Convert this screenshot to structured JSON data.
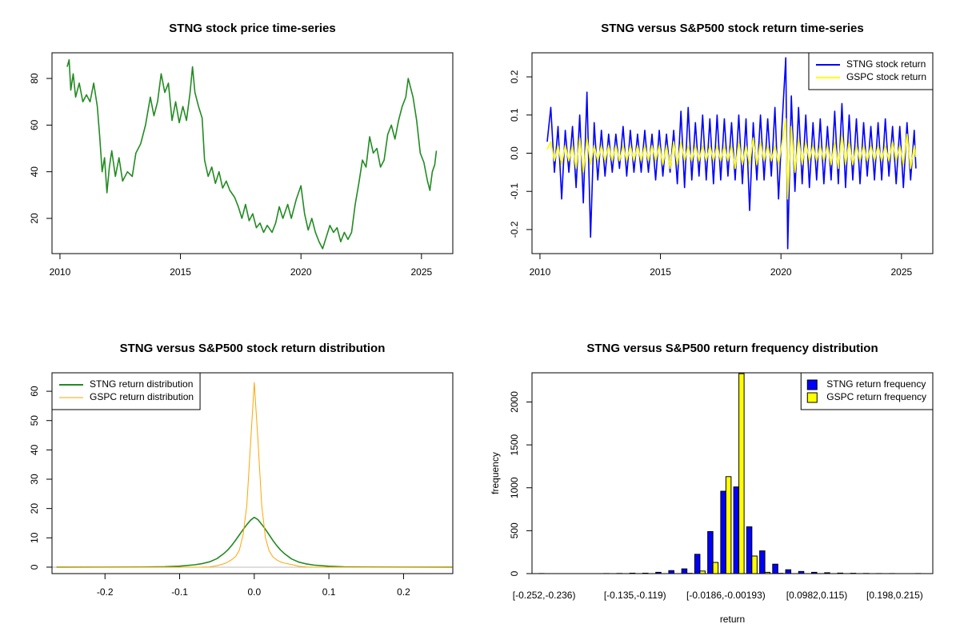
{
  "chart_data": [
    {
      "type": "line",
      "title": "STNG stock price time-series",
      "x": [
        2010.3,
        2010.38,
        2010.45,
        2010.55,
        2010.65,
        2010.8,
        2010.95,
        2011.1,
        2011.25,
        2011.4,
        2011.55,
        2011.65,
        2011.75,
        2011.85,
        2011.95,
        2012.05,
        2012.15,
        2012.3,
        2012.45,
        2012.6,
        2012.8,
        2013.0,
        2013.15,
        2013.35,
        2013.55,
        2013.75,
        2013.9,
        2014.05,
        2014.2,
        2014.35,
        2014.5,
        2014.65,
        2014.8,
        2014.95,
        2015.1,
        2015.25,
        2015.4,
        2015.5,
        2015.6,
        2015.75,
        2015.9,
        2016.0,
        2016.15,
        2016.3,
        2016.45,
        2016.6,
        2016.75,
        2016.9,
        2017.05,
        2017.25,
        2017.4,
        2017.55,
        2017.7,
        2017.85,
        2018.0,
        2018.15,
        2018.3,
        2018.45,
        2018.6,
        2018.8,
        2018.95,
        2019.1,
        2019.25,
        2019.45,
        2019.6,
        2019.8,
        2020.0,
        2020.15,
        2020.3,
        2020.45,
        2020.6,
        2020.75,
        2020.9,
        2021.05,
        2021.2,
        2021.35,
        2021.5,
        2021.65,
        2021.8,
        2021.95,
        2022.1,
        2022.25,
        2022.4,
        2022.55,
        2022.7,
        2022.85,
        2023.0,
        2023.15,
        2023.3,
        2023.45,
        2023.6,
        2023.75,
        2023.9,
        2024.05,
        2024.2,
        2024.35,
        2024.45,
        2024.55,
        2024.65,
        2024.8,
        2024.95,
        2025.1,
        2025.25,
        2025.35,
        2025.45,
        2025.55,
        2025.62
      ],
      "values": [
        85,
        88,
        75,
        82,
        72,
        78,
        70,
        73,
        70,
        78,
        68,
        55,
        40,
        46,
        31,
        42,
        49,
        38,
        46,
        36,
        40,
        38,
        48,
        52,
        60,
        72,
        64,
        70,
        82,
        74,
        78,
        62,
        70,
        61,
        68,
        62,
        74,
        85,
        74,
        68,
        63,
        45,
        38,
        42,
        35,
        40,
        33,
        36,
        32,
        29,
        25,
        20,
        26,
        19,
        22,
        16,
        18,
        14,
        17,
        14,
        18,
        25,
        20,
        26,
        20,
        28,
        34,
        22,
        15,
        20,
        14,
        10,
        7,
        12,
        17,
        14,
        16,
        10,
        14,
        11,
        14,
        26,
        35,
        45,
        42,
        55,
        48,
        50,
        42,
        45,
        56,
        60,
        54,
        62,
        68,
        72,
        80,
        76,
        72,
        62,
        48,
        44,
        36,
        32,
        40,
        43,
        49
      ],
      "color": "#228b22",
      "xlim": [
        2009.67,
        2026.3
      ],
      "xticks": [
        2010,
        2015,
        2020,
        2025
      ],
      "ylim": [
        4.9,
        91.0
      ],
      "yticks": [
        20,
        40,
        60,
        80
      ]
    },
    {
      "type": "line",
      "title": "STNG versus S&P500 stock return time-series",
      "x": [
        2010.3,
        2010.45,
        2010.6,
        2010.75,
        2010.9,
        2011.05,
        2011.2,
        2011.35,
        2011.5,
        2011.65,
        2011.8,
        2011.95,
        2012.1,
        2012.25,
        2012.4,
        2012.55,
        2012.7,
        2012.85,
        2013.0,
        2013.15,
        2013.3,
        2013.45,
        2013.6,
        2013.75,
        2013.9,
        2014.05,
        2014.2,
        2014.35,
        2014.5,
        2014.65,
        2014.8,
        2014.95,
        2015.1,
        2015.25,
        2015.4,
        2015.55,
        2015.7,
        2015.85,
        2016.0,
        2016.15,
        2016.3,
        2016.45,
        2016.6,
        2016.75,
        2016.9,
        2017.05,
        2017.2,
        2017.35,
        2017.5,
        2017.65,
        2017.8,
        2017.95,
        2018.1,
        2018.25,
        2018.4,
        2018.55,
        2018.7,
        2018.85,
        2019.0,
        2019.15,
        2019.3,
        2019.45,
        2019.6,
        2019.75,
        2019.9,
        2020.05,
        2020.2,
        2020.28,
        2020.43,
        2020.58,
        2020.73,
        2020.88,
        2021.03,
        2021.18,
        2021.33,
        2021.48,
        2021.63,
        2021.78,
        2021.93,
        2022.08,
        2022.23,
        2022.38,
        2022.53,
        2022.68,
        2022.83,
        2022.98,
        2023.13,
        2023.28,
        2023.43,
        2023.58,
        2023.73,
        2023.88,
        2024.03,
        2024.18,
        2024.33,
        2024.48,
        2024.63,
        2024.78,
        2024.93,
        2025.08,
        2025.23,
        2025.38,
        2025.53,
        2025.6
      ],
      "series": [
        {
          "name": "STNG stock return",
          "color": "#0000ff",
          "values": [
            0.03,
            0.12,
            -0.05,
            0.07,
            -0.12,
            0.06,
            -0.05,
            0.07,
            -0.09,
            0.1,
            -0.13,
            0.16,
            -0.22,
            0.08,
            -0.07,
            0.06,
            -0.06,
            0.05,
            -0.05,
            0.05,
            -0.04,
            0.07,
            -0.06,
            0.06,
            -0.05,
            0.05,
            -0.05,
            0.06,
            -0.05,
            0.05,
            -0.07,
            0.06,
            -0.06,
            0.05,
            -0.05,
            0.06,
            -0.08,
            0.11,
            -0.09,
            0.12,
            -0.07,
            0.08,
            -0.06,
            0.1,
            -0.07,
            0.09,
            -0.08,
            0.1,
            -0.07,
            0.09,
            -0.06,
            0.08,
            -0.07,
            0.1,
            -0.08,
            0.09,
            -0.15,
            0.08,
            -0.07,
            0.1,
            -0.07,
            0.09,
            -0.06,
            0.12,
            -0.12,
            0.08,
            0.25,
            -0.25,
            0.15,
            -0.1,
            0.12,
            -0.08,
            0.1,
            -0.09,
            0.08,
            -0.07,
            0.09,
            -0.08,
            0.07,
            -0.07,
            0.11,
            -0.08,
            0.13,
            -0.09,
            0.1,
            -0.07,
            0.09,
            -0.08,
            0.08,
            -0.06,
            0.07,
            -0.07,
            0.08,
            -0.07,
            0.09,
            -0.06,
            0.07,
            -0.08,
            0.07,
            -0.09,
            0.08,
            -0.07,
            0.06,
            -0.04
          ]
        },
        {
          "name": "GSPC stock return",
          "color": "#ffff00",
          "values": [
            0.01,
            0.03,
            -0.02,
            0.02,
            -0.03,
            0.02,
            -0.02,
            0.02,
            -0.04,
            0.04,
            -0.05,
            0.04,
            -0.03,
            0.02,
            -0.02,
            0.02,
            -0.02,
            0.02,
            -0.02,
            0.02,
            -0.02,
            0.02,
            -0.02,
            0.02,
            -0.02,
            0.02,
            -0.02,
            0.02,
            -0.02,
            0.02,
            -0.02,
            0.02,
            -0.03,
            0.02,
            -0.04,
            0.03,
            -0.03,
            0.03,
            -0.02,
            0.02,
            -0.02,
            0.02,
            -0.02,
            0.02,
            -0.02,
            0.02,
            -0.02,
            0.02,
            -0.02,
            0.02,
            -0.02,
            0.02,
            -0.04,
            0.03,
            -0.03,
            0.02,
            -0.03,
            0.04,
            -0.03,
            0.03,
            -0.02,
            0.02,
            -0.02,
            0.02,
            -0.03,
            0.03,
            0.09,
            -0.12,
            0.07,
            -0.05,
            0.04,
            -0.03,
            0.03,
            -0.02,
            0.02,
            -0.02,
            0.02,
            -0.02,
            0.02,
            -0.03,
            0.03,
            -0.04,
            0.05,
            -0.03,
            0.03,
            -0.03,
            0.02,
            -0.02,
            0.02,
            -0.02,
            0.02,
            -0.02,
            0.02,
            -0.02,
            0.02,
            -0.02,
            0.03,
            -0.02,
            0.02,
            -0.03,
            0.05,
            -0.04,
            0.02,
            -0.01
          ]
        }
      ],
      "legend": "topright",
      "xlim": [
        2009.67,
        2026.3
      ],
      "xticks": [
        2010,
        2015,
        2020,
        2025
      ],
      "ylim": [
        -0.263,
        0.263
      ],
      "yticks": [
        -0.2,
        -0.1,
        {
          "value": 0,
          "label": "0.0"
        },
        0.1,
        0.2
      ]
    },
    {
      "type": "line",
      "title": "STNG versus S&P500 stock return distribution",
      "x": [
        -0.265,
        -0.2,
        -0.15,
        -0.12,
        -0.1,
        -0.08,
        -0.07,
        -0.06,
        -0.05,
        -0.04,
        -0.035,
        -0.03,
        -0.025,
        -0.02,
        -0.015,
        -0.01,
        -0.005,
        0,
        0.005,
        0.01,
        0.015,
        0.02,
        0.025,
        0.03,
        0.035,
        0.04,
        0.05,
        0.06,
        0.07,
        0.08,
        0.1,
        0.12,
        0.15,
        0.2,
        0.265
      ],
      "series": [
        {
          "name": "STNG return distribution",
          "color": "#228b22",
          "values": [
            0,
            0.02,
            0.05,
            0.15,
            0.35,
            0.8,
            1.2,
            1.8,
            2.9,
            4.8,
            6,
            7.5,
            9.2,
            11,
            12.8,
            14.5,
            16,
            17,
            16.2,
            14.6,
            12.9,
            11,
            9.1,
            7.4,
            5.9,
            4.7,
            2.8,
            1.7,
            1.1,
            0.7,
            0.3,
            0.12,
            0.05,
            0.02,
            0
          ]
        },
        {
          "name": "GSPC return distribution",
          "color": "#ffa500",
          "values": [
            0,
            0,
            0,
            0,
            0,
            0,
            0.02,
            0.1,
            0.5,
            1.2,
            1.8,
            2.6,
            3.6,
            5.8,
            11,
            21,
            42,
            63,
            43,
            21,
            10,
            5.5,
            3.5,
            2.5,
            1.8,
            1.4,
            0.9,
            0.3,
            0.05,
            0,
            0,
            0,
            0,
            0,
            0
          ]
        }
      ],
      "legend": "topleft",
      "xlim": [
        -0.271,
        0.266
      ],
      "xticks": [
        -0.2,
        -0.1,
        {
          "value": 0,
          "label": "0.0"
        },
        0.1,
        0.2
      ],
      "ylim": [
        -2.2,
        66.3
      ],
      "yticks": [
        0,
        10,
        20,
        30,
        40,
        50,
        60
      ]
    },
    {
      "type": "bar",
      "title": "STNG versus S&P500 return frequency distribution",
      "categories": [
        "[-0.252,-0.236)",
        null,
        null,
        null,
        null,
        null,
        null,
        "[-0.135,-0.119)",
        null,
        null,
        null,
        null,
        null,
        null,
        "[-0.0186,-0.00193)",
        null,
        null,
        null,
        null,
        null,
        null,
        "[0.0982,0.115)",
        null,
        null,
        null,
        null,
        null,
        "[0.198,0.215)",
        null,
        null
      ],
      "series": [
        {
          "name": "STNG return frequency",
          "color": "#0000ff",
          "values": [
            1,
            0,
            0,
            0,
            0,
            1,
            2,
            5,
            5,
            15,
            35,
            55,
            225,
            490,
            960,
            1010,
            545,
            265,
            110,
            45,
            25,
            15,
            10,
            6,
            4,
            2,
            1,
            1,
            0,
            1
          ]
        },
        {
          "name": "GSPC return frequency",
          "color": "#ffff00",
          "values": [
            0,
            0,
            0,
            0,
            0,
            0,
            0,
            0,
            0,
            0,
            0,
            3,
            30,
            130,
            1130,
            2330,
            205,
            15,
            3,
            0,
            0,
            0,
            0,
            0,
            0,
            0,
            0,
            0,
            0,
            0
          ]
        }
      ],
      "legend": "topright",
      "xlabel": "return",
      "ylabel": "frequency",
      "ylim": [
        0,
        2340
      ],
      "yticks": [
        0,
        500,
        1000,
        1500,
        2000
      ]
    }
  ]
}
